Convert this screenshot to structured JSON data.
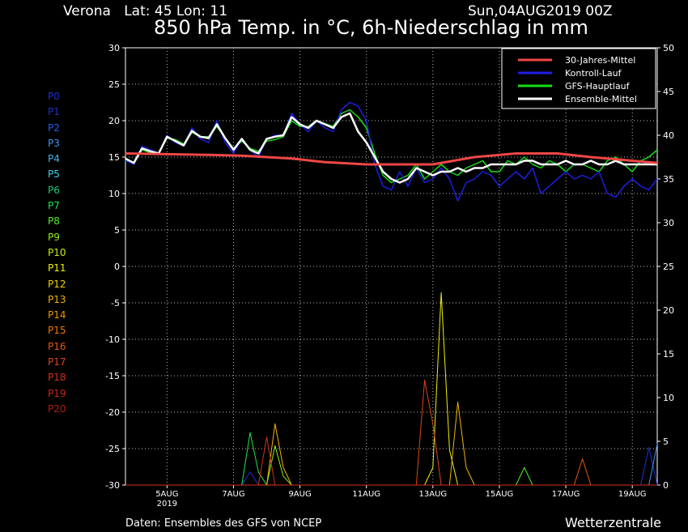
{
  "header": {
    "location": "Verona   Lat: 45 Lon: 11",
    "date": "Sun,04AUG2019 00Z",
    "title": "850 hPa Temp. in °C, 6h-Niederschlag in mm"
  },
  "footer": {
    "source": "Daten: Ensembles des GFS von NCEP",
    "brand": "Wetterzentrale"
  },
  "members": [
    {
      "label": "P0",
      "color": "#1e32d2"
    },
    {
      "label": "P1",
      "color": "#1e32d2"
    },
    {
      "label": "P2",
      "color": "#2060f0"
    },
    {
      "label": "P3",
      "color": "#3c96f5"
    },
    {
      "label": "P4",
      "color": "#46b4f0"
    },
    {
      "label": "P5",
      "color": "#46d2f0"
    },
    {
      "label": "P6",
      "color": "#1ec878"
    },
    {
      "label": "P7",
      "color": "#1ee650"
    },
    {
      "label": "P8",
      "color": "#50f028"
    },
    {
      "label": "P9",
      "color": "#8cf014"
    },
    {
      "label": "P10",
      "color": "#c8f00a"
    },
    {
      "label": "P11",
      "color": "#f0f000"
    },
    {
      "label": "P12",
      "color": "#f0d200"
    },
    {
      "label": "P13",
      "color": "#f0b400"
    },
    {
      "label": "P14",
      "color": "#f09600"
    },
    {
      "label": "P15",
      "color": "#f07800"
    },
    {
      "label": "P16",
      "color": "#e65a14"
    },
    {
      "label": "P17",
      "color": "#dc4614"
    },
    {
      "label": "P18",
      "color": "#d23214"
    },
    {
      "label": "P19",
      "color": "#c82814"
    },
    {
      "label": "P20",
      "color": "#b41e14"
    }
  ],
  "chart_data": {
    "type": "line",
    "x_tick_labels": [
      "5AUG",
      "7AUG",
      "9AUG",
      "11AUG",
      "13AUG",
      "15AUG",
      "17AUG",
      "19AUG"
    ],
    "x_tick_sublabel": "2019",
    "xlim_hours": [
      0,
      384
    ],
    "x_tick_hours": [
      30,
      78,
      126,
      174,
      222,
      270,
      318,
      366
    ],
    "x_unit": "hours after Sun,04AUG2019 00Z",
    "y_left_ticks": [
      30,
      25,
      20,
      15,
      10,
      5,
      0,
      -5,
      -10,
      -15,
      -20,
      -25,
      -30
    ],
    "y_left_lim": [
      -30,
      30
    ],
    "y_right_ticks": [
      50,
      45,
      40,
      35,
      30,
      25,
      20,
      15,
      10,
      5,
      0
    ],
    "y_right_lim": [
      0,
      50
    ],
    "grid": true,
    "legend_position": "top-right",
    "legend": [
      {
        "label": "30-Jahres-Mittel",
        "color": "#f04646"
      },
      {
        "label": "Kontroll-Lauf",
        "color": "#1e1ee6"
      },
      {
        "label": "GFS-Hauptlauf",
        "color": "#14dc14"
      },
      {
        "label": "Ensemble-Mittel",
        "color": "#ffffff"
      }
    ],
    "climatology": {
      "x": [
        0,
        60,
        84,
        120,
        144,
        174,
        222,
        252,
        282,
        312,
        336,
        384
      ],
      "y": [
        15.5,
        15.3,
        15.2,
        14.8,
        14.3,
        14.0,
        14.0,
        15.0,
        15.5,
        15.5,
        15.0,
        14.2
      ]
    },
    "ensemble_mean": {
      "x": [
        0,
        6,
        12,
        18,
        24,
        30,
        36,
        42,
        48,
        54,
        60,
        66,
        72,
        78,
        84,
        90,
        96,
        102,
        108,
        114,
        120,
        126,
        132,
        138,
        144,
        150,
        156,
        162,
        168,
        174,
        180,
        186,
        192,
        198,
        204,
        210,
        216,
        222,
        228,
        234,
        240,
        246,
        252,
        258,
        264,
        270,
        276,
        282,
        288,
        294,
        300,
        306,
        312,
        318,
        324,
        330,
        336,
        342,
        348,
        354,
        360,
        366,
        372,
        378,
        384
      ],
      "y": [
        14.8,
        14.2,
        16.2,
        15.8,
        15.5,
        17.8,
        17.2,
        16.6,
        18.6,
        17.8,
        17.6,
        19.5,
        17.6,
        16.0,
        17.5,
        16.0,
        15.5,
        17.5,
        17.8,
        18.0,
        20.5,
        19.5,
        19.0,
        20.0,
        19.5,
        19.0,
        20.5,
        21.0,
        18.5,
        17.0,
        15.0,
        13.0,
        12.0,
        11.5,
        12.0,
        13.5,
        13.0,
        12.5,
        13.0,
        13.0,
        13.5,
        13.0,
        13.5,
        13.5,
        14.0,
        14.0,
        14.0,
        14.0,
        14.5,
        14.5,
        14.0,
        14.0,
        14.0,
        14.5,
        14.0,
        14.0,
        14.5,
        14.0,
        14.0,
        14.5,
        14.0,
        14.0,
        14.0,
        14.0,
        14.0
      ]
    },
    "control_run": {
      "x": [
        0,
        6,
        12,
        18,
        24,
        30,
        36,
        42,
        48,
        54,
        60,
        66,
        72,
        78,
        84,
        90,
        96,
        102,
        108,
        114,
        120,
        126,
        132,
        138,
        144,
        150,
        156,
        162,
        168,
        174,
        180,
        186,
        192,
        198,
        204,
        210,
        216,
        222,
        228,
        234,
        240,
        246,
        252,
        258,
        264,
        270,
        276,
        282,
        288,
        294,
        300,
        306,
        312,
        318,
        324,
        330,
        336,
        342,
        348,
        354,
        360,
        366,
        372,
        378,
        384
      ],
      "y": [
        14.5,
        14.0,
        16.5,
        16.0,
        15.5,
        18.0,
        17.0,
        16.5,
        19.0,
        17.5,
        17.0,
        20.0,
        17.0,
        15.5,
        17.5,
        16.0,
        15.0,
        17.5,
        18.0,
        18.0,
        21.0,
        19.5,
        18.5,
        20.0,
        19.0,
        18.5,
        21.5,
        22.5,
        22.0,
        20.0,
        14.0,
        11.0,
        10.5,
        13.0,
        11.0,
        13.5,
        11.5,
        12.0,
        13.5,
        12.0,
        9.0,
        11.5,
        12.0,
        13.0,
        12.5,
        11.0,
        12.0,
        13.0,
        12.0,
        13.5,
        10.0,
        11.0,
        12.0,
        13.0,
        12.0,
        12.5,
        12.0,
        13.0,
        10.0,
        9.5,
        11.0,
        12.0,
        11.0,
        10.5,
        12.0
      ]
    },
    "main_run": {
      "x": [
        0,
        6,
        12,
        18,
        24,
        30,
        36,
        42,
        48,
        54,
        60,
        66,
        72,
        78,
        84,
        90,
        96,
        102,
        108,
        114,
        120,
        126,
        132,
        138,
        144,
        150,
        156,
        162,
        168,
        174,
        180,
        186,
        192,
        198,
        204,
        210,
        216,
        222,
        228,
        234,
        240,
        246,
        252,
        258,
        264,
        270,
        276,
        282,
        288,
        294,
        300,
        306,
        312,
        318,
        324,
        330,
        336,
        342,
        348,
        354,
        360,
        366,
        372,
        378,
        384
      ],
      "y": [
        14.6,
        14.3,
        16.0,
        15.6,
        15.6,
        17.6,
        17.4,
        16.8,
        18.4,
        17.8,
        17.8,
        19.2,
        17.6,
        16.2,
        17.2,
        16.2,
        15.8,
        17.2,
        17.4,
        17.8,
        20.0,
        19.2,
        19.2,
        20.0,
        19.6,
        19.2,
        21.0,
        21.5,
        20.5,
        19.0,
        15.5,
        12.5,
        11.5,
        12.0,
        12.5,
        14.0,
        12.0,
        13.0,
        14.0,
        13.0,
        12.5,
        13.5,
        14.0,
        14.5,
        13.0,
        13.0,
        14.5,
        14.0,
        15.0,
        14.0,
        13.5,
        14.5,
        14.0,
        13.0,
        14.0,
        14.0,
        13.5,
        13.0,
        14.5,
        15.0,
        14.0,
        13.0,
        14.5,
        15.0,
        16.0
      ]
    },
    "precip_mm": {
      "x": [
        0,
        12,
        24,
        36,
        48,
        60,
        72,
        78,
        84,
        90,
        96,
        102,
        108,
        114,
        120,
        126,
        132,
        138,
        144,
        150,
        156,
        162,
        168,
        174,
        180,
        186,
        192,
        198,
        204,
        210,
        216,
        222,
        228,
        234,
        240,
        246,
        252,
        258,
        264,
        270,
        276,
        282,
        288,
        294,
        300,
        306,
        312,
        318,
        324,
        330,
        336,
        342,
        348,
        354,
        360,
        366,
        372,
        378,
        384
      ],
      "series": [
        {
          "member": "P1",
          "y": [
            0,
            0,
            0,
            0,
            0,
            0,
            0,
            0,
            0,
            1.5,
            0,
            0,
            0,
            0,
            0,
            0,
            0,
            0,
            0,
            0,
            0,
            0,
            0,
            0,
            0,
            0,
            0,
            0,
            0,
            0,
            0,
            0,
            0,
            0,
            0,
            0,
            0,
            0,
            0,
            0,
            0,
            0,
            0,
            0,
            0,
            0,
            0,
            0,
            0,
            0,
            0,
            0,
            0,
            0,
            0,
            0,
            0,
            4.3,
            0
          ]
        },
        {
          "member": "P3",
          "y": [
            0,
            0,
            0,
            0,
            0,
            0,
            0,
            0,
            0,
            0,
            0,
            0,
            0,
            0,
            0,
            0,
            0,
            0,
            0,
            0,
            0,
            0,
            0,
            0,
            0,
            0,
            0,
            0,
            0,
            0,
            0,
            0,
            0,
            0,
            0,
            0,
            0,
            0,
            0,
            0,
            0,
            0,
            0,
            0,
            0,
            0,
            0,
            0,
            0,
            0,
            0,
            0,
            0,
            0,
            0,
            0,
            0,
            0,
            4.7
          ]
        },
        {
          "member": "P7",
          "y": [
            0,
            0,
            0,
            0,
            0,
            0,
            0,
            0,
            0,
            6.0,
            1.5,
            0,
            0,
            0,
            0,
            0,
            0,
            0,
            0,
            0,
            0,
            0,
            0,
            0,
            0,
            0,
            0,
            0,
            0,
            0,
            0,
            0,
            0,
            0,
            0,
            0,
            0,
            0,
            0,
            0,
            0,
            0,
            0,
            0,
            0,
            0,
            0,
            0,
            0,
            0,
            0,
            0,
            0,
            0,
            0,
            0,
            0,
            0,
            0
          ]
        },
        {
          "member": "P8",
          "y": [
            0,
            0,
            0,
            0,
            0,
            0,
            0,
            0,
            0,
            0,
            0,
            0,
            0,
            0,
            0,
            0,
            0,
            0,
            0,
            0,
            0,
            0,
            0,
            0,
            0,
            0,
            0,
            0,
            0,
            0,
            0,
            0,
            0,
            0,
            0,
            0,
            0,
            0,
            0,
            0,
            0,
            0,
            2.0,
            0,
            0,
            0,
            0,
            0,
            0,
            0,
            0,
            0,
            0,
            0,
            0,
            0,
            0,
            0,
            0
          ]
        },
        {
          "member": "P9",
          "y": [
            0,
            0,
            0,
            0,
            0,
            0,
            0,
            0,
            0,
            0,
            0,
            0,
            4.5,
            1.0,
            0,
            0,
            0,
            0,
            0,
            0,
            0,
            0,
            0,
            0,
            0,
            0,
            0,
            0,
            0,
            0,
            0,
            0,
            0,
            0,
            0,
            0,
            0,
            0,
            0,
            0,
            0,
            0,
            0,
            0,
            0,
            0,
            0,
            0,
            0,
            0,
            0,
            0,
            0,
            0,
            0,
            0,
            0,
            0,
            0
          ]
        },
        {
          "member": "P11",
          "y": [
            0,
            0,
            0,
            0,
            0,
            0,
            0,
            0,
            0,
            0,
            0,
            0,
            0,
            0,
            0,
            0,
            0,
            0,
            0,
            0,
            0,
            0,
            0,
            0,
            0,
            0,
            0,
            0,
            0,
            0,
            0,
            2.0,
            22.0,
            4.0,
            0,
            0,
            0,
            0,
            0,
            0,
            0,
            0,
            0,
            0,
            0,
            0,
            0,
            0,
            0,
            0,
            0,
            0,
            0,
            0,
            0,
            0,
            0,
            0,
            0
          ]
        },
        {
          "member": "P13",
          "y": [
            0,
            0,
            0,
            0,
            0,
            0,
            0,
            0,
            0,
            0,
            0,
            0,
            7.0,
            2.0,
            0,
            0,
            0,
            0,
            0,
            0,
            0,
            0,
            0,
            0,
            0,
            0,
            0,
            0,
            0,
            0,
            0,
            0,
            0,
            0,
            9.5,
            2.0,
            0,
            0,
            0,
            0,
            0,
            0,
            0,
            0,
            0,
            0,
            0,
            0,
            0,
            0,
            0,
            0,
            0,
            0,
            0,
            0,
            0,
            0,
            0
          ]
        },
        {
          "member": "P16",
          "y": [
            0,
            0,
            0,
            0,
            0,
            0,
            0,
            0,
            0,
            0,
            0,
            0,
            0,
            0,
            0,
            0,
            0,
            0,
            0,
            0,
            0,
            0,
            0,
            0,
            0,
            0,
            0,
            0,
            0,
            0,
            0,
            0,
            0,
            0,
            0,
            0,
            0,
            0,
            0,
            0,
            0,
            0,
            0,
            0,
            0,
            0,
            0,
            0,
            0,
            3.0,
            0,
            0,
            0,
            0,
            0,
            0,
            0,
            0,
            0
          ]
        },
        {
          "member": "P17",
          "y": [
            0,
            0,
            0,
            0,
            0,
            0,
            0,
            0,
            0,
            0,
            0,
            0,
            0,
            0,
            0,
            0,
            0,
            0,
            0,
            0,
            0,
            0,
            0,
            0,
            0,
            0,
            0,
            0,
            0,
            0,
            12.0,
            7.0,
            0,
            0,
            0,
            0,
            0,
            0,
            0,
            0,
            0,
            0,
            0,
            0,
            0,
            0,
            0,
            0,
            0,
            0,
            0,
            0,
            0,
            0,
            0,
            0,
            0,
            0,
            0
          ]
        },
        {
          "member": "P18",
          "y": [
            0,
            0,
            0,
            0,
            0,
            0,
            0,
            0,
            0,
            0,
            0,
            5.5,
            0,
            0,
            0,
            0,
            0,
            0,
            0,
            0,
            0,
            0,
            0,
            0,
            0,
            0,
            0,
            0,
            0,
            0,
            0,
            0,
            0,
            0,
            0,
            0,
            0,
            0,
            0,
            0,
            0,
            0,
            0,
            0,
            0,
            0,
            0,
            0,
            0,
            0,
            0,
            0,
            0,
            0,
            0,
            0,
            0,
            0,
            0
          ]
        }
      ]
    }
  }
}
